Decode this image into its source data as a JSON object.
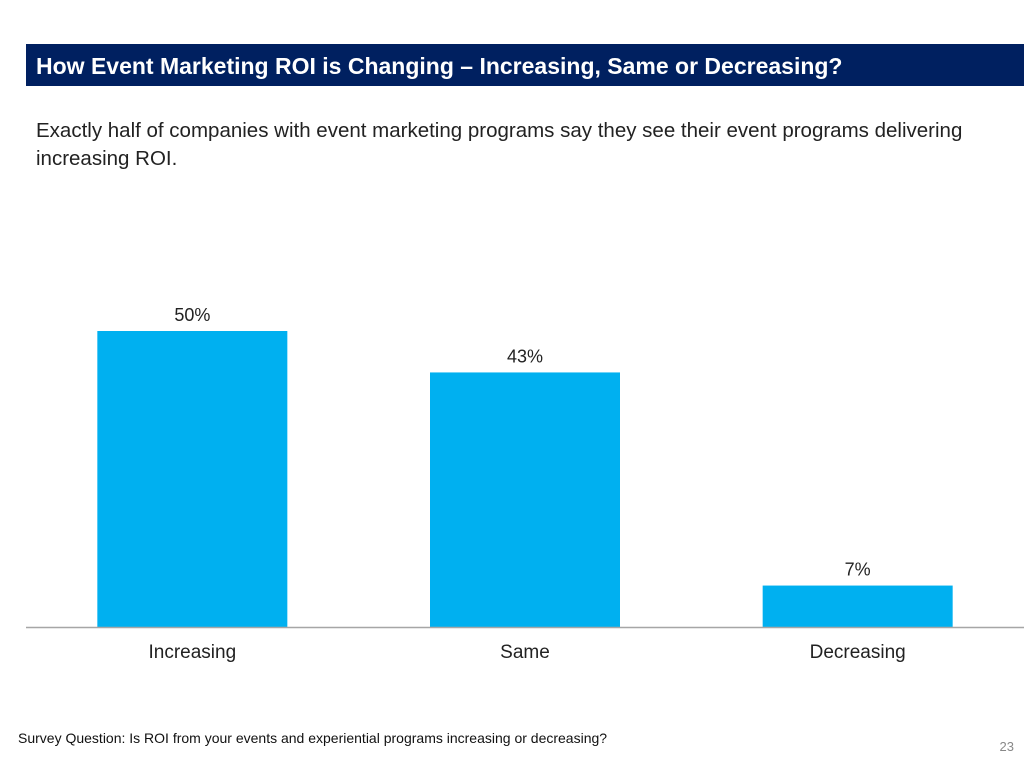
{
  "slide": {
    "title": "How Event Marketing ROI is Changing – Increasing, Same or Decreasing?",
    "subtitle": "Exactly half of companies with event marketing programs say they see their event programs delivering increasing ROI.",
    "footnote": "Survey Question: Is ROI from your events and experiential programs increasing or decreasing?",
    "page_number": "23"
  },
  "colors": {
    "header_bg": "#002060",
    "bar": "#00b0f0",
    "axis": "#a6a6a6"
  },
  "chart_data": {
    "type": "bar",
    "title": "",
    "xlabel": "",
    "ylabel": "",
    "categories": [
      "Increasing",
      "Same",
      "Decreasing"
    ],
    "values": [
      50,
      43,
      7
    ],
    "data_labels": [
      "50%",
      "43%",
      "7%"
    ],
    "unit": "%",
    "ylim": [
      0,
      50
    ],
    "grid": false,
    "legend": "none"
  }
}
